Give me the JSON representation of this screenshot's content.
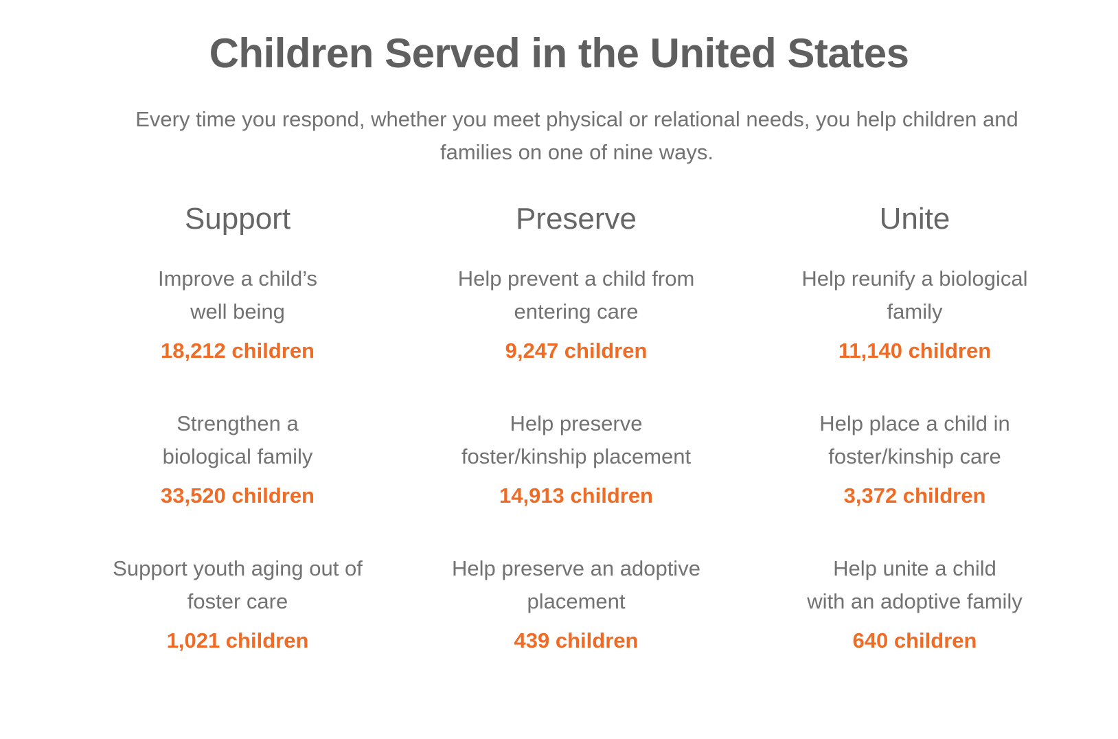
{
  "title": "Children Served in the United States",
  "subtitle": "Every time you respond, whether you meet physical or relational needs, you help children and families on one of nine ways.",
  "accent_color": "#ee6c26",
  "columns": [
    {
      "heading": "Support",
      "items": [
        {
          "description": "Improve a child’s\nwell being",
          "count": "18,212 children"
        },
        {
          "description": "Strengthen a\nbiological family",
          "count": "33,520 children"
        },
        {
          "description": "Support youth aging out of\nfoster care",
          "count": "1,021 children"
        }
      ]
    },
    {
      "heading": "Preserve",
      "items": [
        {
          "description": "Help prevent a child from\nentering care",
          "count": "9,247 children"
        },
        {
          "description": "Help preserve\nfoster/kinship placement",
          "count": "14,913 children"
        },
        {
          "description": "Help preserve an adoptive\nplacement",
          "count": "439 children"
        }
      ]
    },
    {
      "heading": "Unite",
      "items": [
        {
          "description": "Help reunify a biological\nfamily",
          "count": "11,140 children"
        },
        {
          "description": "Help place a child in\nfoster/kinship care",
          "count": "3,372 children"
        },
        {
          "description": "Help unite a child\nwith an adoptive family",
          "count": "640 children"
        }
      ]
    }
  ]
}
